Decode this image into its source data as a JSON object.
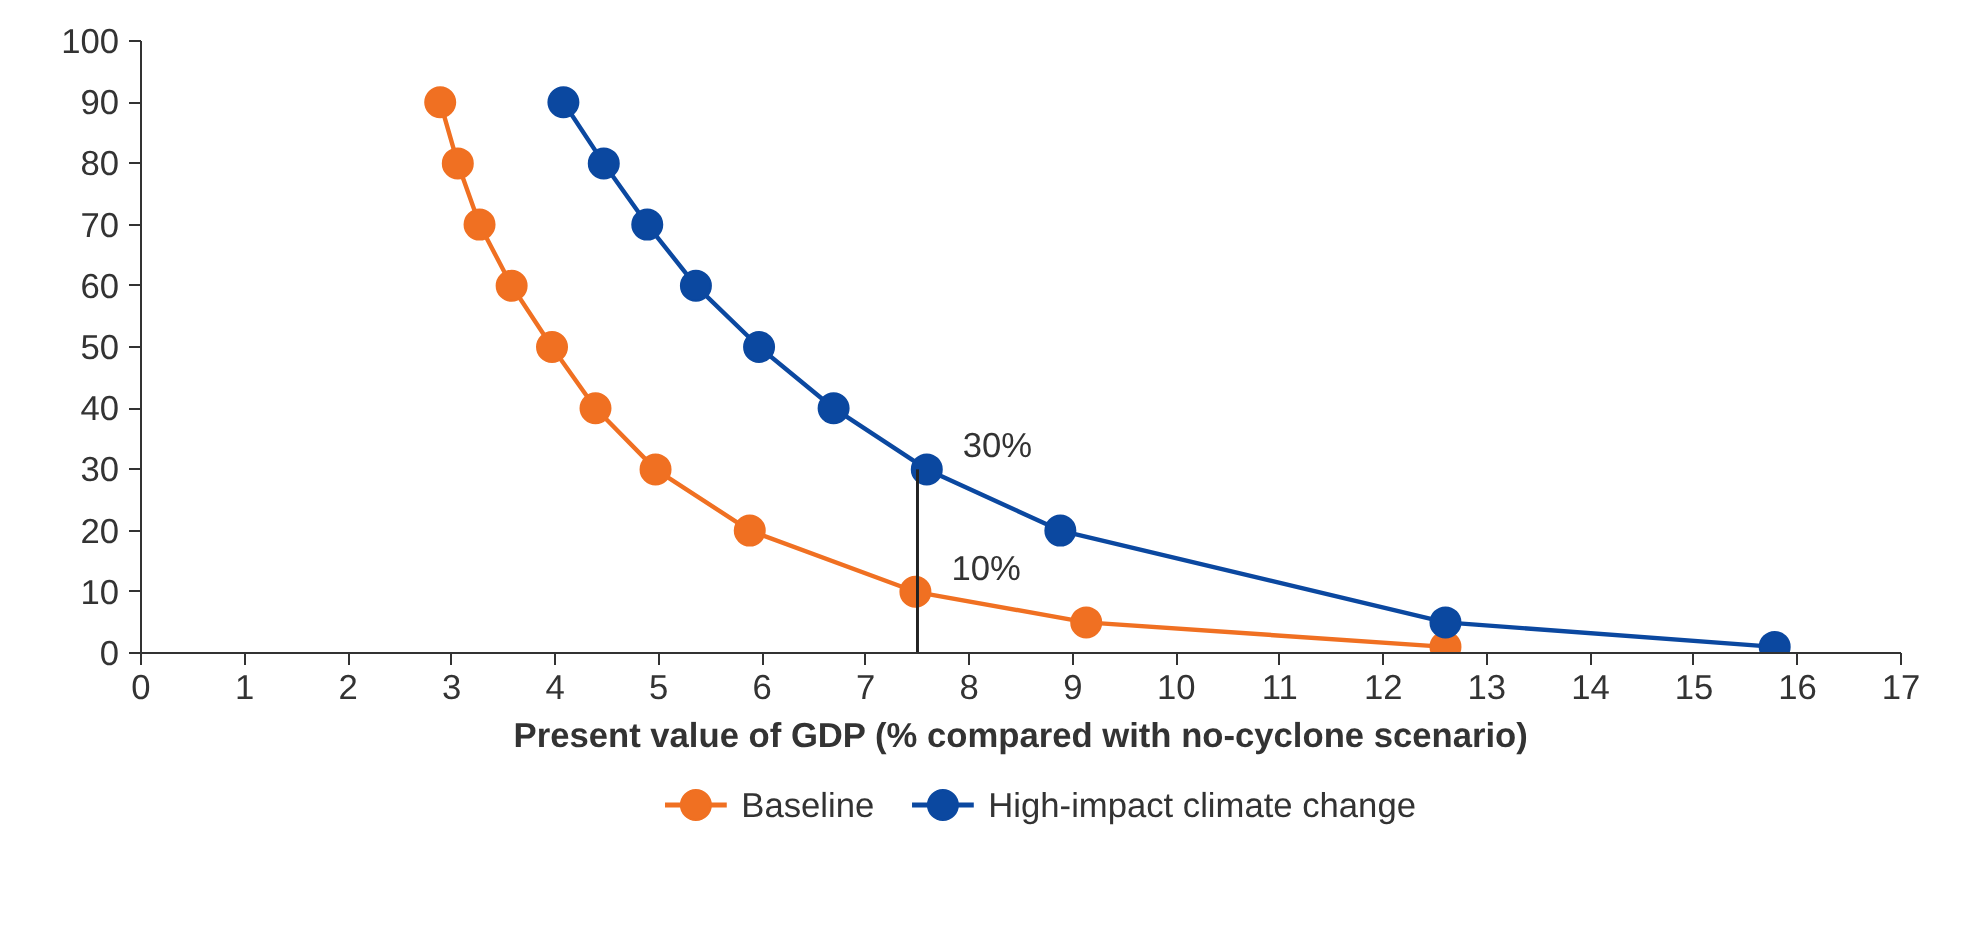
{
  "chart_data": {
    "type": "line",
    "xlabel": "Present value of GDP (% compared with no-cyclone scenario)",
    "xlim": [
      0,
      17
    ],
    "xticks": [
      0,
      1,
      2,
      3,
      4,
      5,
      6,
      7,
      8,
      9,
      10,
      11,
      12,
      13,
      14,
      15,
      16,
      17
    ],
    "ylim": [
      0,
      100
    ],
    "yticks": [
      0,
      10,
      20,
      30,
      40,
      50,
      60,
      70,
      80,
      90,
      100
    ],
    "grid": false,
    "legend": "bottom",
    "marker": "circle",
    "line_style": "solid",
    "series": [
      {
        "name": "Baseline",
        "color": "#f07022",
        "x": [
          2.89,
          3.06,
          3.27,
          3.58,
          3.97,
          4.39,
          4.97,
          5.88,
          7.48,
          9.13,
          12.6
        ],
        "values": [
          90,
          80,
          70,
          60,
          50,
          40,
          30,
          20,
          10,
          5,
          1
        ]
      },
      {
        "name": "High-impact climate change",
        "color": "#0b48a0",
        "x": [
          4.08,
          4.47,
          4.89,
          5.36,
          5.97,
          6.69,
          7.59,
          8.88,
          12.6,
          15.78
        ],
        "values": [
          90,
          80,
          70,
          60,
          50,
          40,
          30,
          20,
          5,
          1
        ]
      },
      {
        "color": "#222222",
        "x": [
          7.5,
          7.5
        ],
        "values": [
          0,
          30
        ],
        "marker": "none"
      }
    ],
    "annotations": [
      {
        "text": "30%",
        "x": 7.59,
        "y": 30
      },
      {
        "text": "10%",
        "x": 7.48,
        "y": 10
      }
    ]
  }
}
